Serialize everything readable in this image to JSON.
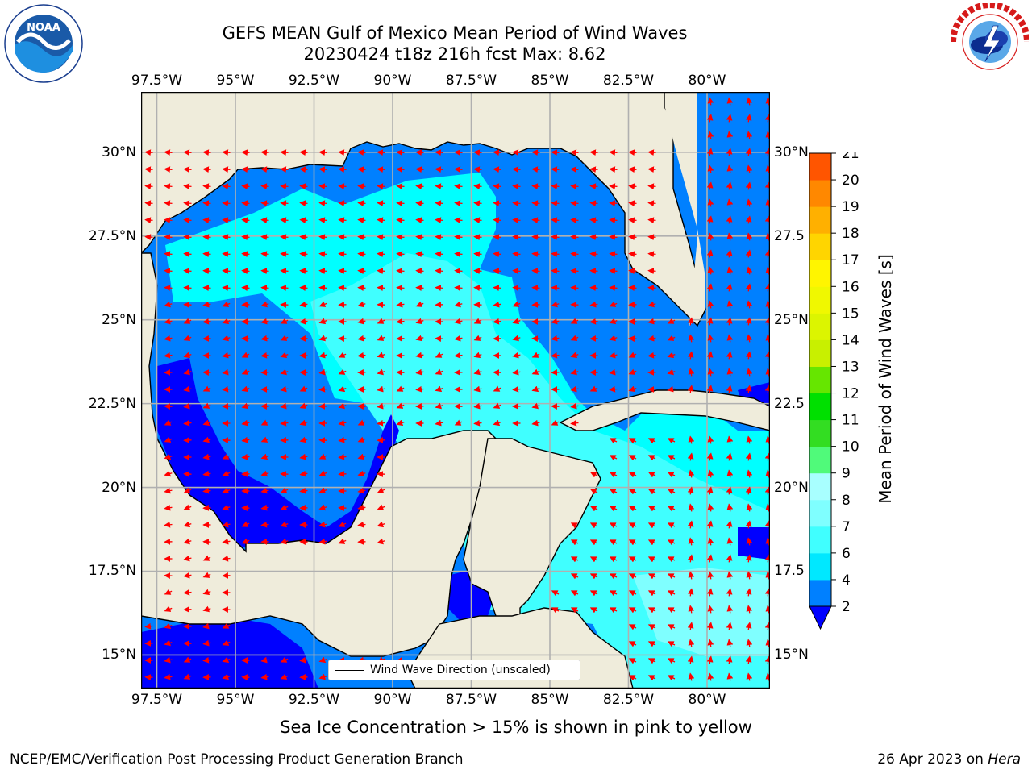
{
  "header": {
    "title_line1": "GEFS MEAN Gulf of Mexico Mean Period of Wind Waves",
    "title_line2": "20230424 t18z 216h fcst   Max: 8.62"
  },
  "logos": {
    "left": {
      "name": "noaa-logo",
      "text": "NOAA",
      "ring_text": "NATIONAL OCEANIC AND ATMOSPHERIC ADMINISTRATION · U.S. DEPARTMENT OF COMMERCE"
    },
    "right": {
      "name": "nws-logo",
      "ring_text": "NATIONAL WEATHER SERVICE"
    }
  },
  "map": {
    "lon_ticks": [
      "97.5°W",
      "95°W",
      "92.5°W",
      "90°W",
      "87.5°W",
      "85°W",
      "82.5°W",
      "80°W"
    ],
    "lat_ticks": [
      "30°N",
      "27.5°N",
      "25°N",
      "22.5°N",
      "20°N",
      "17.5°N",
      "15°N"
    ],
    "lat_ticks_right": [
      "30°N",
      "27.5",
      "25°N",
      "22.5",
      "20°N",
      "17.5",
      "15°N"
    ],
    "lon_range": [
      -98,
      -78
    ],
    "lat_range": [
      14,
      31.8
    ],
    "colors": {
      "land": "#efecdb",
      "coast": "#000000",
      "grid": "#b0b0b0",
      "arrow": "#ff0000"
    },
    "legend_text": "Wind Wave Direction (unscaled)"
  },
  "colorbar": {
    "label": "Mean Period of Wind Waves [s]",
    "ticks": [
      "2",
      "4",
      "6",
      "7",
      "8",
      "9",
      "10",
      "11",
      "12",
      "13",
      "14",
      "15",
      "16",
      "17",
      "18",
      "19",
      "20",
      "21"
    ],
    "colors": [
      "#0080ff",
      "#00e8ff",
      "#40ffff",
      "#7fffff",
      "#a8ffff",
      "#50fa7a",
      "#33dd22",
      "#00e000",
      "#66e600",
      "#c8f000",
      "#dcf500",
      "#f0f800",
      "#fff500",
      "#ffd500",
      "#ffb000",
      "#ff8800",
      "#ff5500",
      "#ff2a00",
      "#ff0000"
    ],
    "under_color": "#0000ff"
  },
  "caption": "Sea Ice Concentration > 15% is shown in pink to yellow",
  "footer": {
    "left": "NCEP/EMC/Verification Post Processing Product Generation Branch",
    "right_prefix": "26 Apr 2023 on ",
    "right_machine": "Hera"
  }
}
